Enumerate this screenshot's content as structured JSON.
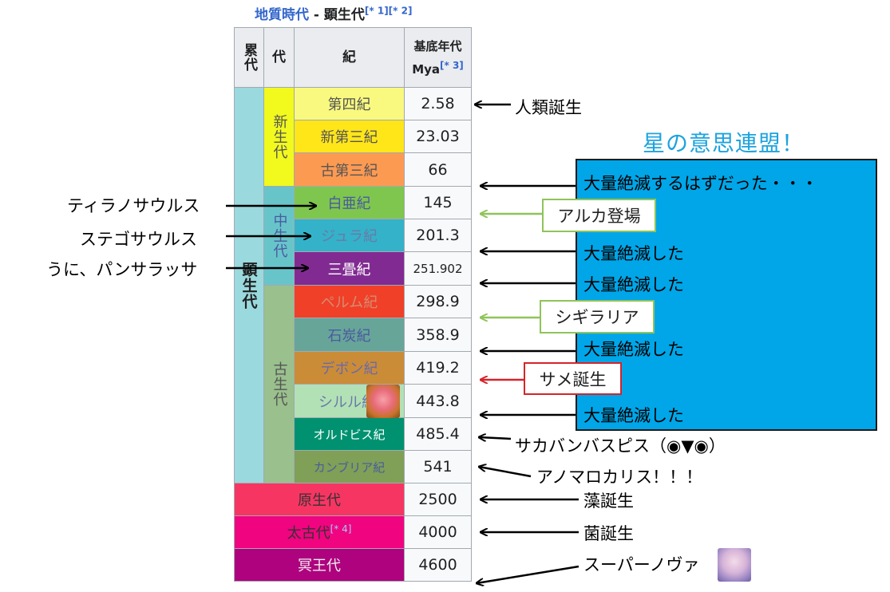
{
  "title": {
    "prefix": "地質時代",
    "sep": " - ",
    "main": "顕生代",
    "refs": "[* 1][* 2]"
  },
  "header": {
    "eon": "累代",
    "era": "代",
    "period": "紀",
    "base": "基底年代",
    "mya": "Mya",
    "mya_ref": "[* 3]"
  },
  "eon_label": "顕生代",
  "eras": {
    "cenozoic": "新生代",
    "mesozoic": "中生代",
    "paleozoic": "古生代"
  },
  "periods": [
    {
      "name": "第四紀",
      "mya": "2.58",
      "color": "#f9f97f"
    },
    {
      "name": "新第三紀",
      "mya": "23.03",
      "color": "#ffe619"
    },
    {
      "name": "古第三紀",
      "mya": "66",
      "color": "#fd9a52"
    },
    {
      "name": "白亜紀",
      "mya": "145",
      "color": "#7fc64e"
    },
    {
      "name": "ジュラ紀",
      "mya": "201.3",
      "color": "#34b2c9"
    },
    {
      "name": "三畳紀",
      "mya": "251.902",
      "color": "#812b92"
    },
    {
      "name": "ペルム紀",
      "mya": "298.9",
      "color": "#f04028"
    },
    {
      "name": "石炭紀",
      "mya": "358.9",
      "color": "#67a599"
    },
    {
      "name": "デボン紀",
      "mya": "419.2",
      "color": "#cb8c37"
    },
    {
      "name": "シルル紀",
      "mya": "443.8",
      "color": "#b3e1b6"
    },
    {
      "name": "オルドビス紀",
      "mya": "485.4",
      "color": "#009270"
    },
    {
      "name": "カンブリア紀",
      "mya": "541",
      "color": "#7fa056"
    }
  ],
  "eons": [
    {
      "name": "原生代",
      "ref": "",
      "mya": "2500",
      "color": "#f73563"
    },
    {
      "name": "太古代",
      "ref": "[* 4]",
      "mya": "4000",
      "color": "#f0047f"
    },
    {
      "name": "冥王代",
      "ref": "",
      "mya": "4600",
      "color": "#ae027e"
    }
  ],
  "annotations": {
    "human": "人類誕生",
    "tyrannosaurus": "ティラノサウルス",
    "stegosaurus": "ステゴサウルス",
    "pansalassa": "うに、パンサラッサ",
    "alka": "アルカ登場",
    "sigillaria": "シギラリア",
    "shark": "サメ誕生",
    "sacabambaspis": "サカバンバスピス（◉▼◉）",
    "anomalocaris": "アノマロカリス！！！",
    "algae": "藻誕生",
    "bacteria": "菌誕生",
    "supernova": "スーパーノヴァ"
  },
  "heading": "星の意思連盟！",
  "blue_box": {
    "line1": "大量絶滅するはずだった・・・",
    "line2": "大量絶滅した",
    "line3": "大量絶滅した",
    "line4": "大量絶滅した",
    "line5": "大量絶滅した"
  },
  "colors": {
    "phanerozoic": "#9ad9dd",
    "cenozoic": "#f2f91d",
    "mesozoic": "#67c5ca",
    "paleozoic": "#99c08d",
    "blue_box": "#00a6e8",
    "link": "#3366cc"
  }
}
